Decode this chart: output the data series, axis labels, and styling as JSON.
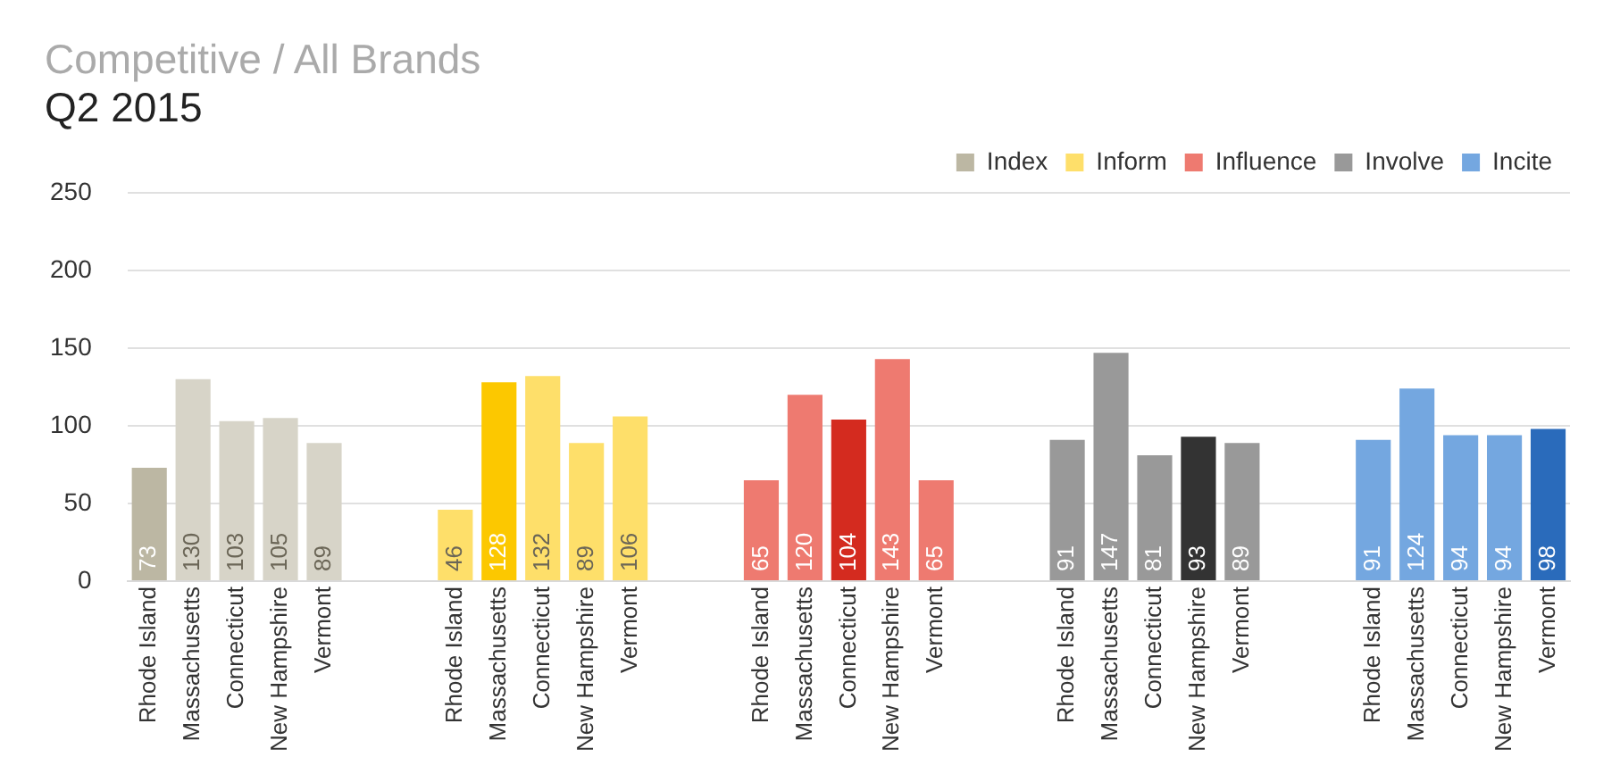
{
  "chart_data": {
    "type": "bar",
    "title": "Competitive / All Brands",
    "subtitle": "Q2 2015",
    "categories": [
      "Rhode Island",
      "Massachusetts",
      "Connecticut",
      "New Hampshire",
      "Vermont",
      null,
      null,
      "Rhode Island",
      "Massachusetts",
      "Connecticut",
      "New Hampshire",
      "Vermont",
      null,
      null,
      "Rhode Island",
      "Massachusetts",
      "Connecticut",
      "New Hampshire",
      "Vermont",
      null,
      null,
      "Rhode Island",
      "Massachusetts",
      "Connecticut",
      "New Hampshire",
      "Vermont",
      null,
      null,
      "Rhode Island",
      "Massachusetts",
      "Connecticut",
      "New Hampshire",
      "Vermont"
    ],
    "series": [
      {
        "name": "Index",
        "color": "#bcb7a3",
        "colors": [
          "#bcb7a3",
          "#d7d4c8",
          "#d7d4c8",
          "#d7d4c8",
          "#d7d4c8",
          null,
          null,
          null,
          null,
          null,
          null,
          null,
          null,
          null,
          null,
          null,
          null,
          null,
          null,
          null,
          null,
          null,
          null,
          null,
          null,
          null,
          null,
          null,
          null,
          null,
          null,
          null,
          null
        ],
        "values": [
          73,
          130,
          103,
          105,
          89,
          null,
          null,
          null,
          null,
          null,
          null,
          null,
          null,
          null,
          null,
          null,
          null,
          null,
          null,
          null,
          null,
          null,
          null,
          null,
          null,
          null,
          null,
          null,
          null,
          null,
          null,
          null,
          null
        ]
      },
      {
        "name": "Inform",
        "color": "#fedf6a",
        "colors": [
          null,
          null,
          null,
          null,
          null,
          null,
          null,
          "#fedf6a",
          "#fcc800",
          "#fedf6a",
          "#fedf6a",
          "#fedf6a",
          null,
          null,
          null,
          null,
          null,
          null,
          null,
          null,
          null,
          null,
          null,
          null,
          null,
          null,
          null,
          null,
          null,
          null,
          null,
          null,
          null
        ],
        "values": [
          null,
          null,
          null,
          null,
          null,
          null,
          null,
          46,
          128,
          132,
          89,
          106,
          null,
          null,
          null,
          null,
          null,
          null,
          null,
          null,
          null,
          null,
          null,
          null,
          null,
          null,
          null,
          null,
          null,
          null,
          null,
          null,
          null
        ]
      },
      {
        "name": "Influence",
        "color": "#ee7a70",
        "colors": [
          null,
          null,
          null,
          null,
          null,
          null,
          null,
          null,
          null,
          null,
          null,
          null,
          null,
          null,
          "#ee7a70",
          "#ee7a70",
          "#d42b1f",
          "#ee7a70",
          "#ee7a70",
          null,
          null,
          null,
          null,
          null,
          null,
          null,
          null,
          null,
          null,
          null,
          null,
          null,
          null
        ],
        "values": [
          null,
          null,
          null,
          null,
          null,
          null,
          null,
          null,
          null,
          null,
          null,
          null,
          null,
          null,
          65,
          120,
          104,
          143,
          65,
          null,
          null,
          null,
          null,
          null,
          null,
          null,
          null,
          null,
          null,
          null,
          null,
          null,
          null
        ]
      },
      {
        "name": "Involve",
        "color": "#999999",
        "colors": [
          null,
          null,
          null,
          null,
          null,
          null,
          null,
          null,
          null,
          null,
          null,
          null,
          null,
          null,
          null,
          null,
          null,
          null,
          null,
          null,
          null,
          "#999999",
          "#999999",
          "#999999",
          "#333333",
          "#999999",
          null,
          null,
          null,
          null,
          null,
          null,
          null
        ],
        "values": [
          null,
          null,
          null,
          null,
          null,
          null,
          null,
          null,
          null,
          null,
          null,
          null,
          null,
          null,
          null,
          null,
          null,
          null,
          null,
          null,
          null,
          91,
          147,
          81,
          93,
          89,
          null,
          null,
          null,
          null,
          null,
          null,
          null
        ]
      },
      {
        "name": "Incite",
        "color": "#74a7e0",
        "colors": [
          null,
          null,
          null,
          null,
          null,
          null,
          null,
          null,
          null,
          null,
          null,
          null,
          null,
          null,
          null,
          null,
          null,
          null,
          null,
          null,
          null,
          null,
          null,
          null,
          null,
          null,
          null,
          null,
          "#74a7e0",
          "#74a7e0",
          "#74a7e0",
          "#74a7e0",
          "#2a6bbb"
        ],
        "values": [
          null,
          null,
          null,
          null,
          null,
          null,
          null,
          null,
          null,
          null,
          null,
          null,
          null,
          null,
          null,
          null,
          null,
          null,
          null,
          null,
          null,
          null,
          null,
          null,
          null,
          null,
          null,
          null,
          91,
          124,
          94,
          94,
          98
        ]
      }
    ],
    "ylim": [
      0,
      250
    ],
    "yticks": [
      0,
      50,
      100,
      150,
      200,
      250
    ],
    "grid": "y",
    "legend": "top right",
    "data_labels": true
  }
}
